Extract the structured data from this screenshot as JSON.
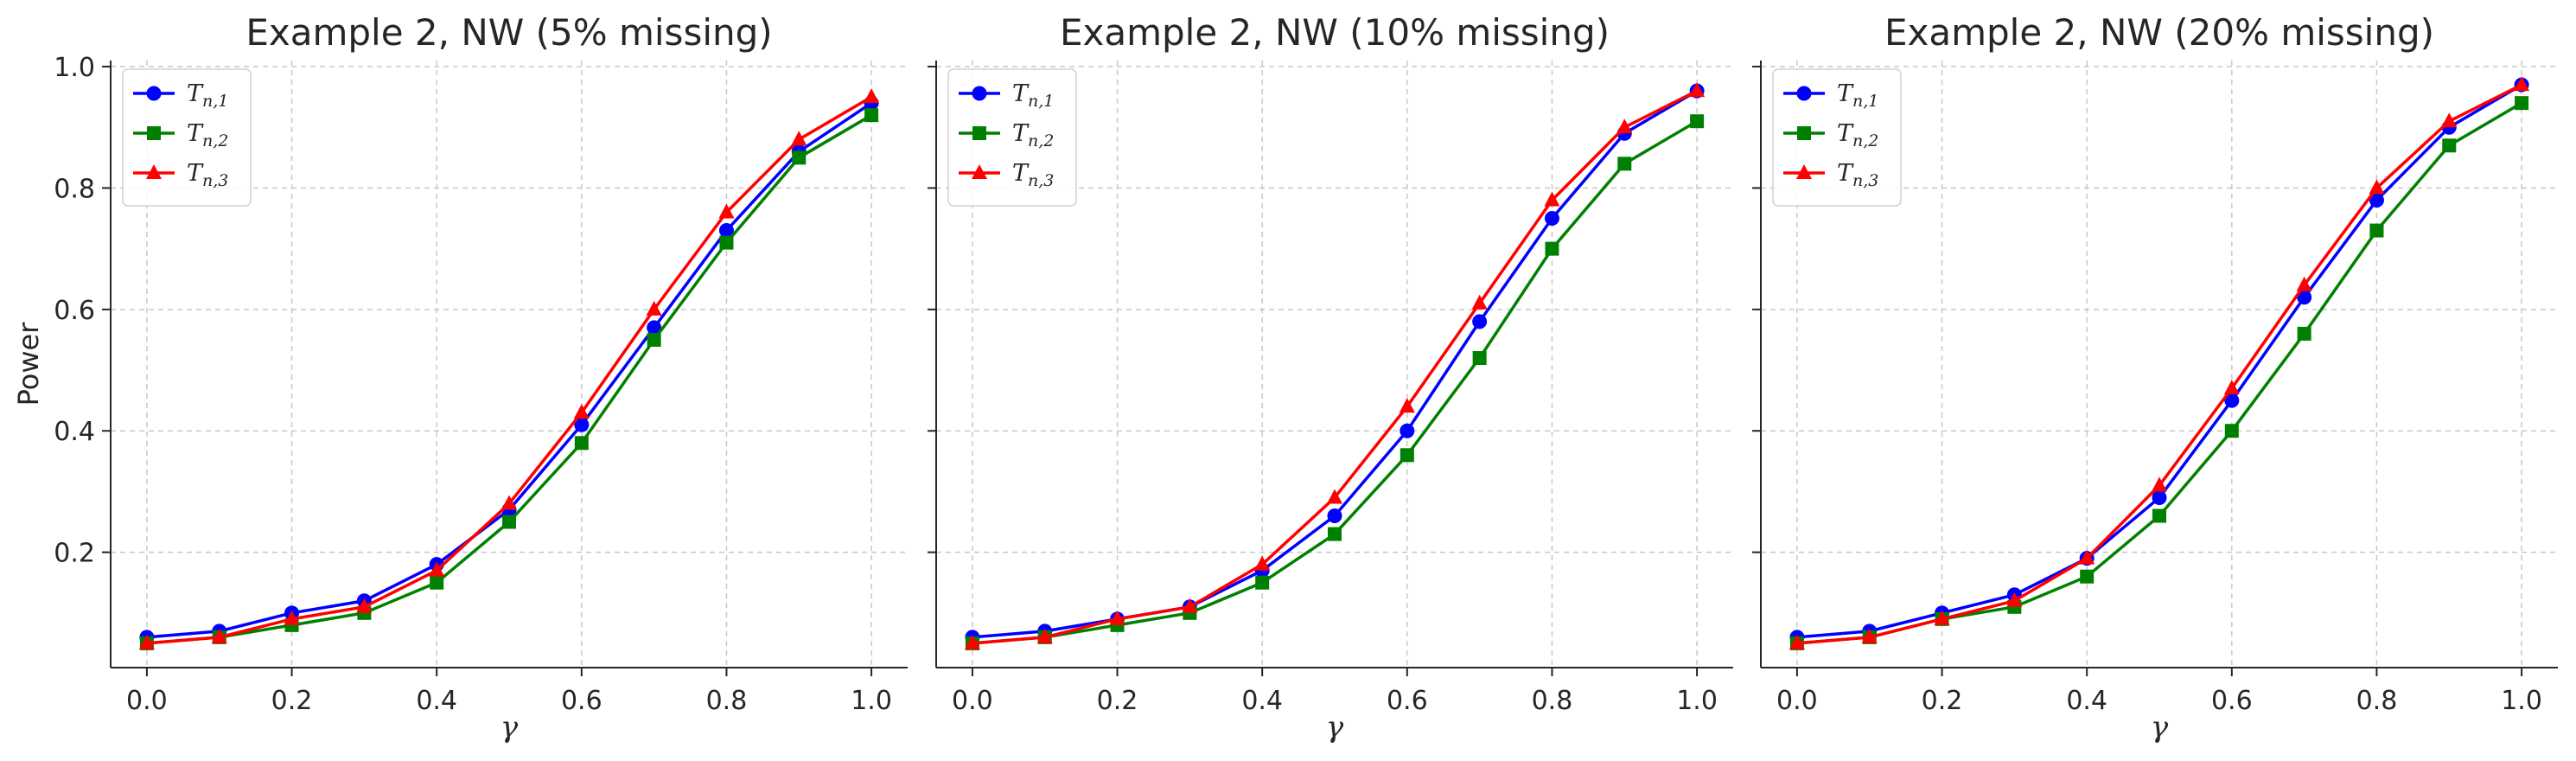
{
  "chart_data": [
    {
      "type": "line",
      "title": "Example 2, NW (5% missing)",
      "xlabel": "γ",
      "ylabel": "Power",
      "x": [
        0.0,
        0.1,
        0.2,
        0.3,
        0.4,
        0.5,
        0.6,
        0.7,
        0.8,
        0.9,
        1.0
      ],
      "xticks": [
        "0.0",
        "0.2",
        "0.4",
        "0.6",
        "0.8",
        "1.0"
      ],
      "yticks": [
        "0.2",
        "0.4",
        "0.6",
        "0.8",
        "1.0"
      ],
      "xlim": [
        -0.05,
        1.05
      ],
      "ylim": [
        0.01,
        1.01
      ],
      "grid": true,
      "legend_position": "top-left",
      "series": [
        {
          "name": "T_{n,1}",
          "base": "T",
          "sub": "n,1",
          "color": "#0000ff",
          "marker": "circle",
          "values": [
            0.06,
            0.07,
            0.1,
            0.12,
            0.18,
            0.27,
            0.41,
            0.57,
            0.73,
            0.86,
            0.94
          ]
        },
        {
          "name": "T_{n,2}",
          "base": "T",
          "sub": "n,2",
          "color": "#008000",
          "marker": "square",
          "values": [
            0.05,
            0.06,
            0.08,
            0.1,
            0.15,
            0.25,
            0.38,
            0.55,
            0.71,
            0.85,
            0.92
          ]
        },
        {
          "name": "T_{n,3}",
          "base": "T",
          "sub": "n,3",
          "color": "#ff0000",
          "marker": "triangle",
          "values": [
            0.05,
            0.06,
            0.09,
            0.11,
            0.17,
            0.28,
            0.43,
            0.6,
            0.76,
            0.88,
            0.95
          ]
        }
      ]
    },
    {
      "type": "line",
      "title": "Example 2, NW (10% missing)",
      "xlabel": "γ",
      "ylabel": "",
      "x": [
        0.0,
        0.1,
        0.2,
        0.3,
        0.4,
        0.5,
        0.6,
        0.7,
        0.8,
        0.9,
        1.0
      ],
      "xticks": [
        "0.0",
        "0.2",
        "0.4",
        "0.6",
        "0.8",
        "1.0"
      ],
      "yticks": [],
      "xlim": [
        -0.05,
        1.05
      ],
      "ylim": [
        0.01,
        1.01
      ],
      "grid": true,
      "legend_position": "top-left",
      "series": [
        {
          "name": "T_{n,1}",
          "base": "T",
          "sub": "n,1",
          "color": "#0000ff",
          "marker": "circle",
          "values": [
            0.06,
            0.07,
            0.09,
            0.11,
            0.17,
            0.26,
            0.4,
            0.58,
            0.75,
            0.89,
            0.96
          ]
        },
        {
          "name": "T_{n,2}",
          "base": "T",
          "sub": "n,2",
          "color": "#008000",
          "marker": "square",
          "values": [
            0.05,
            0.06,
            0.08,
            0.1,
            0.15,
            0.23,
            0.36,
            0.52,
            0.7,
            0.84,
            0.91
          ]
        },
        {
          "name": "T_{n,3}",
          "base": "T",
          "sub": "n,3",
          "color": "#ff0000",
          "marker": "triangle",
          "values": [
            0.05,
            0.06,
            0.09,
            0.11,
            0.18,
            0.29,
            0.44,
            0.61,
            0.78,
            0.9,
            0.96
          ]
        }
      ]
    },
    {
      "type": "line",
      "title": "Example 2, NW (20% missing)",
      "xlabel": "γ",
      "ylabel": "",
      "x": [
        0.0,
        0.1,
        0.2,
        0.3,
        0.4,
        0.5,
        0.6,
        0.7,
        0.8,
        0.9,
        1.0
      ],
      "xticks": [
        "0.0",
        "0.2",
        "0.4",
        "0.6",
        "0.8",
        "1.0"
      ],
      "yticks": [],
      "xlim": [
        -0.05,
        1.05
      ],
      "ylim": [
        0.01,
        1.01
      ],
      "grid": true,
      "legend_position": "top-left",
      "series": [
        {
          "name": "T_{n,1}",
          "base": "T",
          "sub": "n,1",
          "color": "#0000ff",
          "marker": "circle",
          "values": [
            0.06,
            0.07,
            0.1,
            0.13,
            0.19,
            0.29,
            0.45,
            0.62,
            0.78,
            0.9,
            0.97
          ]
        },
        {
          "name": "T_{n,2}",
          "base": "T",
          "sub": "n,2",
          "color": "#008000",
          "marker": "square",
          "values": [
            0.05,
            0.06,
            0.09,
            0.11,
            0.16,
            0.26,
            0.4,
            0.56,
            0.73,
            0.87,
            0.94
          ]
        },
        {
          "name": "T_{n,3}",
          "base": "T",
          "sub": "n,3",
          "color": "#ff0000",
          "marker": "triangle",
          "values": [
            0.05,
            0.06,
            0.09,
            0.12,
            0.19,
            0.31,
            0.47,
            0.64,
            0.8,
            0.91,
            0.97
          ]
        }
      ]
    }
  ]
}
